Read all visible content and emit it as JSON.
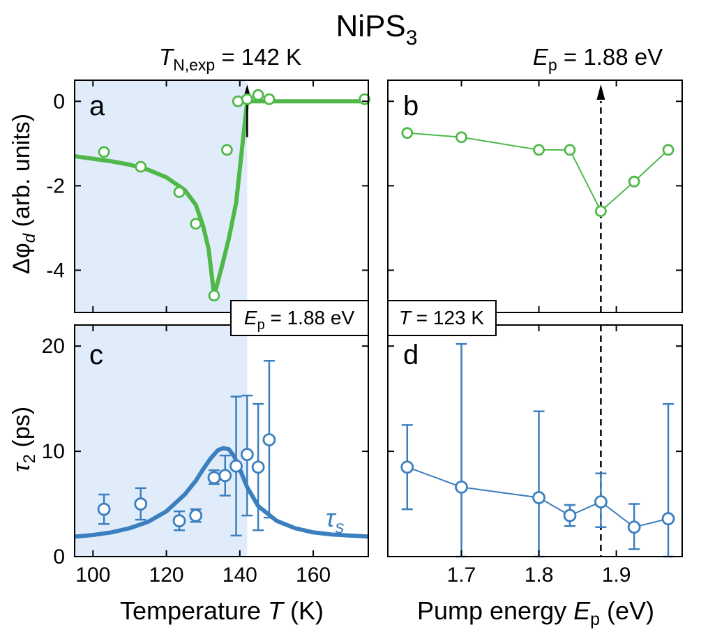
{
  "figure": {
    "title": "NiPS",
    "title_sub": "3",
    "colors": {
      "green": "#4fb848",
      "blue": "#3b7fbf",
      "shade": "#e1ecfb",
      "axis": "#000000"
    }
  },
  "annotations": {
    "tn_main": "T",
    "tn_sub": "N,exp",
    "tn_value": " = 142 K",
    "ep_main": "E",
    "ep_sub": "p",
    "ep_value": " = 1.88 eV",
    "box_c_main": "E",
    "box_c_sub": "p",
    "box_c_value": " = 1.88 eV",
    "box_d_main": "T",
    "box_d_value": " = 123 K",
    "tau_s_main": "τ",
    "tau_s_sub": "s"
  },
  "axes": {
    "ylabel_top": "Δφ",
    "ylabel_top_sub": "d",
    "ylabel_top_rest": " (arb. units)",
    "ylabel_bottom": "τ",
    "ylabel_bottom_sub": "2",
    "ylabel_bottom_rest": " (ps)",
    "xlabel_left": "Temperature ",
    "xlabel_left_var": "T",
    "xlabel_left_unit": " (K)",
    "xlabel_right": "Pump energy ",
    "xlabel_right_var": "E",
    "xlabel_right_sub": "p",
    "xlabel_right_unit": " (eV)"
  },
  "chart_data": [
    {
      "panel": "a",
      "type": "scatter",
      "xlim": [
        95,
        175
      ],
      "ylim": [
        -5,
        0.5
      ],
      "yticks": [
        0,
        -2,
        -4
      ],
      "ytick_labels": [
        "0",
        "-2",
        "-4"
      ],
      "shade_range": [
        95,
        142
      ],
      "marker": 142,
      "x": [
        103,
        113,
        123.5,
        128,
        133,
        136.5,
        139.5,
        142,
        145,
        148,
        174
      ],
      "y": [
        -1.2,
        -1.55,
        -2.15,
        -2.9,
        -4.6,
        -1.15,
        0,
        0.05,
        0.15,
        0.05,
        0.05
      ],
      "fit_x": [
        95,
        100,
        105,
        110,
        115,
        120,
        125,
        128,
        130,
        131.5,
        133,
        135,
        137,
        139,
        140.5,
        141.5,
        142,
        143,
        150,
        175
      ],
      "fit_y": [
        -1.3,
        -1.36,
        -1.42,
        -1.5,
        -1.62,
        -1.8,
        -2.1,
        -2.45,
        -2.95,
        -3.5,
        -4.6,
        -3.95,
        -3.25,
        -2.4,
        -1.2,
        -0.4,
        0,
        0,
        0,
        0
      ]
    },
    {
      "panel": "b",
      "type": "line",
      "xlim": [
        1.605,
        1.985
      ],
      "ylim": [
        -5,
        0.5
      ],
      "marker": 1.88,
      "x": [
        1.63,
        1.7,
        1.8,
        1.84,
        1.88,
        1.923,
        1.967
      ],
      "y": [
        -0.75,
        -0.85,
        -1.15,
        -1.15,
        -2.6,
        -1.9,
        -1.15
      ]
    },
    {
      "panel": "c",
      "type": "scatter",
      "xlim": [
        95,
        175
      ],
      "ylim": [
        0,
        22
      ],
      "yticks": [
        0,
        10,
        20
      ],
      "ytick_labels": [
        "0",
        "10",
        "20"
      ],
      "xticks": [
        100,
        120,
        140,
        160
      ],
      "xtick_labels": [
        "100",
        "120",
        "140",
        "160"
      ],
      "shade_range": [
        95,
        142
      ],
      "x": [
        103,
        113,
        123.5,
        128,
        133,
        136,
        139,
        142,
        145,
        148
      ],
      "y": [
        4.5,
        5.0,
        3.4,
        3.9,
        7.5,
        7.7,
        8.6,
        9.7,
        8.5,
        11.1
      ],
      "err_low": [
        1.4,
        1.5,
        0.9,
        0.6,
        0.6,
        1.9,
        6.6,
        5.8,
        6.0,
        7.4
      ],
      "err_high": [
        1.4,
        1.5,
        0.9,
        0.6,
        0.7,
        1.9,
        6.6,
        5.6,
        6.0,
        7.5
      ],
      "fit_x": [
        95,
        100,
        105,
        110,
        115,
        120,
        125,
        128,
        130,
        132,
        134,
        135.5,
        137,
        138.5,
        140,
        142,
        145,
        150,
        155,
        160,
        165,
        170,
        175
      ],
      "fit_y": [
        1.9,
        2.05,
        2.3,
        2.7,
        3.3,
        4.3,
        5.9,
        7.2,
        8.3,
        9.3,
        10.1,
        10.3,
        10.2,
        9.5,
        8.3,
        6.6,
        4.8,
        3.4,
        2.7,
        2.3,
        2.1,
        2.0,
        1.9
      ]
    },
    {
      "panel": "d",
      "type": "line",
      "xlim": [
        1.605,
        1.985
      ],
      "ylim": [
        0,
        22
      ],
      "xticks": [
        1.7,
        1.8,
        1.9
      ],
      "xtick_labels": [
        "1.7",
        "1.8",
        "1.9"
      ],
      "marker": 1.88,
      "x": [
        1.63,
        1.7,
        1.8,
        1.84,
        1.88,
        1.923,
        1.967
      ],
      "y": [
        8.5,
        6.6,
        5.6,
        3.9,
        5.2,
        2.8,
        3.6
      ],
      "err_low": [
        4.0,
        6.6,
        5.6,
        1.0,
        2.4,
        2.1,
        3.6
      ],
      "err_high": [
        4.0,
        13.6,
        8.2,
        1.0,
        2.7,
        2.2,
        10.9
      ]
    }
  ]
}
